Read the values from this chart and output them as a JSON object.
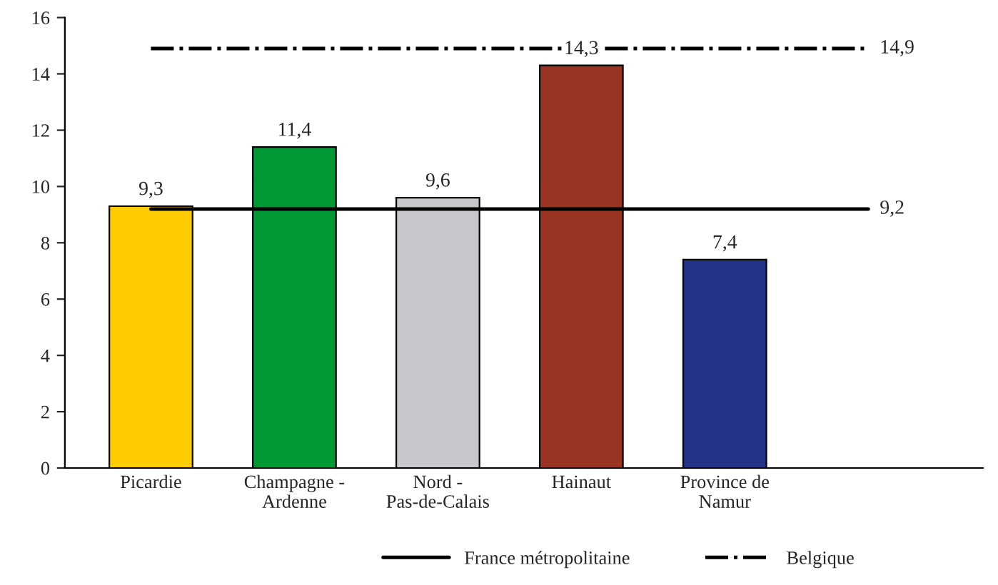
{
  "chart_data": {
    "type": "bar",
    "categories": [
      "Picardie",
      "Champagne -\nArdenne",
      "Nord -\nPas-de-Calais",
      "Hainaut",
      "Province de\nNamur",
      null
    ],
    "series": [
      {
        "colors": [
          "#ffcc00",
          "#009933",
          "#c8c8cc",
          "#993322",
          "#223388",
          "#ffffff"
        ],
        "values": [
          9.3,
          11.4,
          9.6,
          14.3,
          7.4,
          null
        ],
        "value_labels": [
          "9,3",
          "11,4",
          "9,6",
          "14,3",
          "7,4",
          null
        ]
      },
      {
        "type": "line",
        "name": "France métropolitaine",
        "color": "#000000",
        "line_style": "solid",
        "values": [
          9.2,
          9.2,
          9.2,
          9.2,
          9.2,
          9.2
        ],
        "value_labels": [
          null,
          null,
          null,
          null,
          null,
          "9,2"
        ]
      },
      {
        "type": "line",
        "name": "Belgique",
        "color": "#000000",
        "line_style": "dashdot",
        "values": [
          14.9,
          14.9,
          14.9,
          14.9,
          14.9,
          14.9
        ],
        "value_labels": [
          null,
          null,
          null,
          null,
          null,
          "14,9"
        ]
      }
    ],
    "ylim": [
      0,
      16
    ],
    "yticks": [
      0,
      2,
      4,
      6,
      8,
      10,
      12,
      14,
      16
    ],
    "grid": false,
    "legend": "bottom"
  }
}
